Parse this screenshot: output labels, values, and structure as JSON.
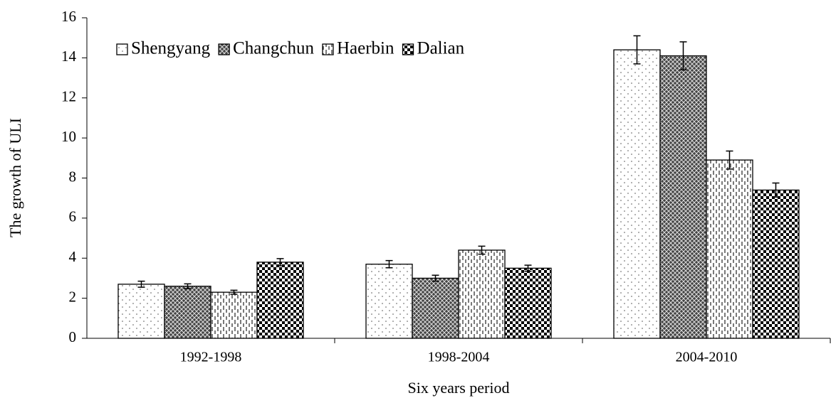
{
  "chart_data": {
    "type": "bar",
    "x_label": "Six years period",
    "y_label": "The growth of ULI",
    "categories": [
      "1992-1998",
      "1998-2004",
      "2004-2010"
    ],
    "series": [
      {
        "name": "Shengyang",
        "pattern": "dots",
        "values": [
          2.7,
          3.7,
          14.4
        ],
        "errors": [
          0.15,
          0.18,
          0.7
        ]
      },
      {
        "name": "Changchun",
        "pattern": "crosshatch",
        "values": [
          2.6,
          3.0,
          14.1
        ],
        "errors": [
          0.12,
          0.15,
          0.7
        ]
      },
      {
        "name": "Haerbin",
        "pattern": "vdash",
        "values": [
          2.3,
          4.4,
          8.9
        ],
        "errors": [
          0.1,
          0.2,
          0.45
        ]
      },
      {
        "name": "Dalian",
        "pattern": "checker",
        "values": [
          3.8,
          3.5,
          7.4
        ],
        "errors": [
          0.18,
          0.15,
          0.35
        ]
      }
    ],
    "ylim": [
      0,
      16
    ],
    "yticks": [
      0,
      2,
      4,
      6,
      8,
      10,
      12,
      14,
      16
    ],
    "legend": "top-left",
    "grid": false
  }
}
